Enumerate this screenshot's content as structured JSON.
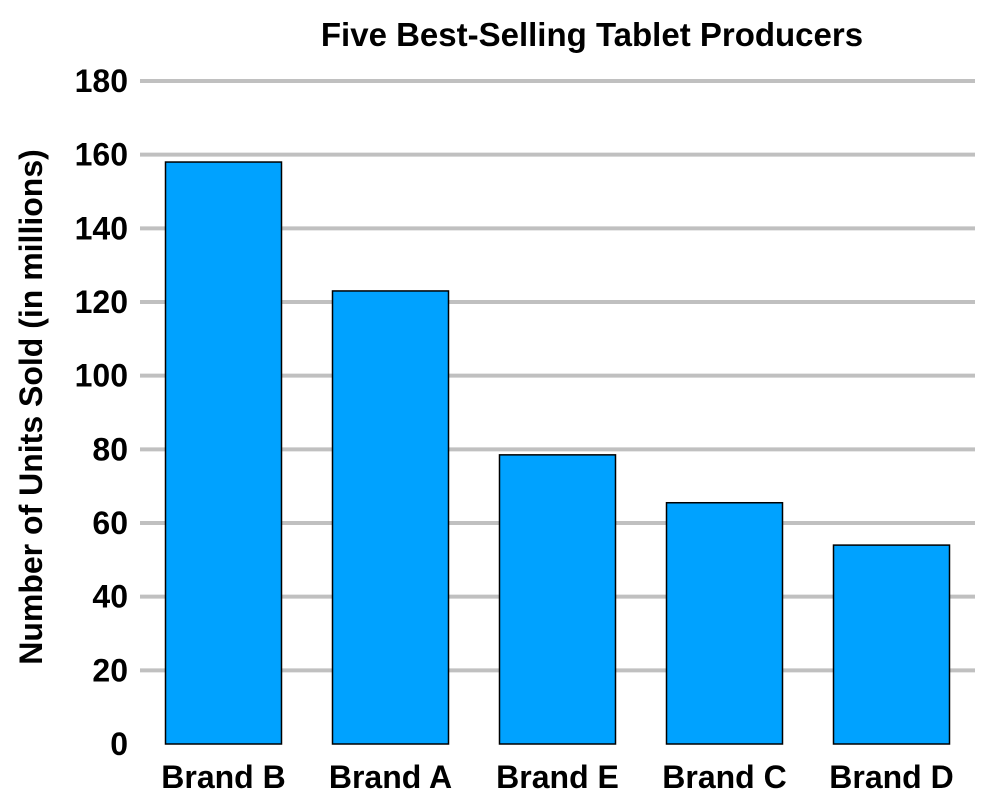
{
  "chart_data": {
    "type": "bar",
    "title": "Five Best-Selling Tablet Producers",
    "xlabel": "",
    "ylabel": "Number of Units Sold (in millions)",
    "categories": [
      "Brand B",
      "Brand A",
      "Brand E",
      "Brand C",
      "Brand D"
    ],
    "values": [
      158,
      123,
      78.5,
      65.5,
      54
    ],
    "ylim": [
      0,
      180
    ],
    "yticks": [
      0,
      20,
      40,
      60,
      80,
      100,
      120,
      140,
      160,
      180
    ],
    "grid": true,
    "legend": "none",
    "colors": {
      "bar_fill": "#00a2ff",
      "bar_stroke": "#000000",
      "grid": "#c0c0c0",
      "text": "#000000"
    }
  }
}
